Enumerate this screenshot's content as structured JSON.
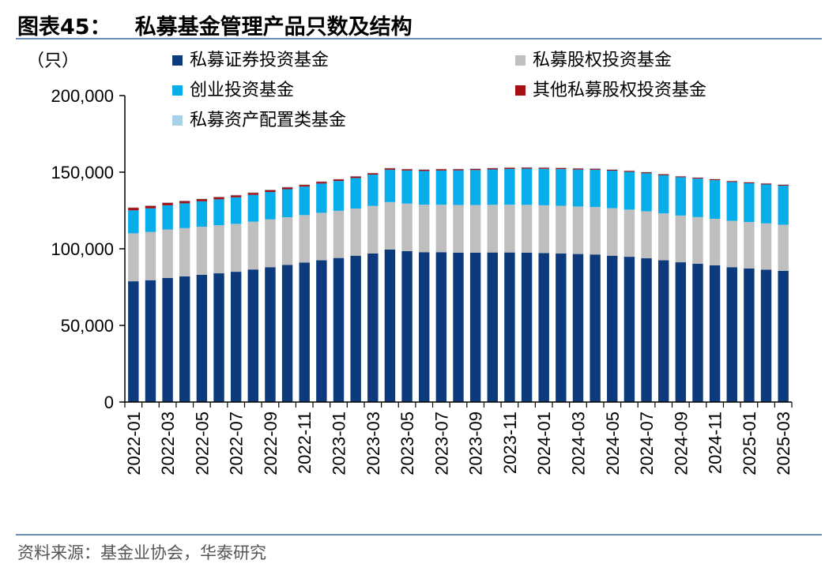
{
  "header": {
    "figure_label": "图表45：",
    "title": "私募基金管理产品只数及结构"
  },
  "footer": {
    "source": "资料来源：基金业协会，华泰研究"
  },
  "colors": {
    "securities": "#0c3a7c",
    "equity": "#bfbfbf",
    "venture": "#08aeea",
    "other_equity": "#a30f12",
    "asset_allocation": "#a9d1e8",
    "axis": "#000000",
    "rule": "#6a8db6"
  },
  "chart_data": {
    "type": "bar",
    "stacked": true,
    "unit_label": "（只）",
    "ylim": [
      0,
      200000
    ],
    "yticks": [
      0,
      50000,
      100000,
      150000,
      200000
    ],
    "ytick_labels": [
      "0",
      "50,000",
      "100,000",
      "150,000",
      "200,000"
    ],
    "grid": false,
    "legend_position": "top",
    "categories": [
      "2022-01",
      "2022-02",
      "2022-03",
      "2022-04",
      "2022-05",
      "2022-06",
      "2022-07",
      "2022-08",
      "2022-09",
      "2022-10",
      "2022-11",
      "2022-12",
      "2023-01",
      "2023-02",
      "2023-03",
      "2023-04",
      "2023-05",
      "2023-06",
      "2023-07",
      "2023-08",
      "2023-09",
      "2023-10",
      "2023-11",
      "2023-12",
      "2024-01",
      "2024-02",
      "2024-03",
      "2024-04",
      "2024-05",
      "2024-06",
      "2024-07",
      "2024-08",
      "2024-09",
      "2024-10",
      "2024-11",
      "2024-12",
      "2025-01",
      "2025-02",
      "2025-03"
    ],
    "xtick_labels": [
      "2022-01",
      "2022-03",
      "2022-05",
      "2022-07",
      "2022-09",
      "2022-11",
      "2023-01",
      "2023-03",
      "2023-05",
      "2023-07",
      "2023-09",
      "2023-11",
      "2024-01",
      "2024-03",
      "2024-05",
      "2024-07",
      "2024-09",
      "2024-11",
      "2025-01",
      "2025-03"
    ],
    "series": [
      {
        "name": "私募证券投资基金",
        "color_key": "securities",
        "values": [
          78800,
          79500,
          81000,
          82000,
          83000,
          84000,
          85000,
          86500,
          88000,
          89500,
          91000,
          92500,
          94000,
          95500,
          97000,
          99500,
          98500,
          97800,
          97800,
          97500,
          97500,
          97600,
          97600,
          97500,
          97200,
          96900,
          96600,
          96300,
          95500,
          94800,
          93800,
          92500,
          91200,
          90300,
          89200,
          88000,
          87200,
          86400,
          85600
        ]
      },
      {
        "name": "私募股权投资基金",
        "color_key": "equity",
        "values": [
          31300,
          31500,
          31600,
          31500,
          31400,
          31400,
          31300,
          31200,
          31200,
          31100,
          31000,
          31000,
          30800,
          30800,
          31000,
          31000,
          31000,
          31000,
          31000,
          31100,
          31100,
          31100,
          31200,
          31200,
          31200,
          31200,
          31000,
          31000,
          31000,
          30800,
          30700,
          30600,
          30500,
          30400,
          30400,
          30300,
          30300,
          30200,
          30100
        ]
      },
      {
        "name": "创业投资基金",
        "color_key": "venture",
        "values": [
          15000,
          15400,
          15800,
          16200,
          16600,
          16900,
          17300,
          17500,
          17900,
          18300,
          18600,
          19100,
          19500,
          19900,
          20400,
          21100,
          21600,
          22000,
          22300,
          22600,
          22800,
          23100,
          23300,
          23600,
          23800,
          23900,
          24100,
          24300,
          24500,
          24600,
          24800,
          24900,
          25000,
          25100,
          25200,
          25300,
          25300,
          25400,
          25500
        ]
      },
      {
        "name": "其他私募股权投资基金",
        "color_key": "other_equity",
        "values": [
          1900,
          1800,
          1800,
          1700,
          1700,
          1600,
          1500,
          1500,
          1400,
          1400,
          1300,
          1300,
          1200,
          1200,
          1100,
          1100,
          1000,
          1000,
          1000,
          900,
          900,
          900,
          900,
          800,
          800,
          800,
          800,
          700,
          700,
          700,
          700,
          700,
          600,
          600,
          600,
          600,
          600,
          600,
          600
        ]
      },
      {
        "name": "私募资产配置类基金",
        "color_key": "asset_allocation",
        "values": [
          20,
          25,
          30,
          35,
          40,
          45,
          50,
          55,
          60,
          65,
          70,
          75,
          80,
          85,
          90,
          95,
          100,
          110,
          120,
          130,
          140,
          150,
          160,
          170,
          180,
          190,
          200,
          210,
          220,
          230,
          240,
          250,
          260,
          270,
          280,
          290,
          300,
          310,
          320
        ]
      }
    ]
  }
}
